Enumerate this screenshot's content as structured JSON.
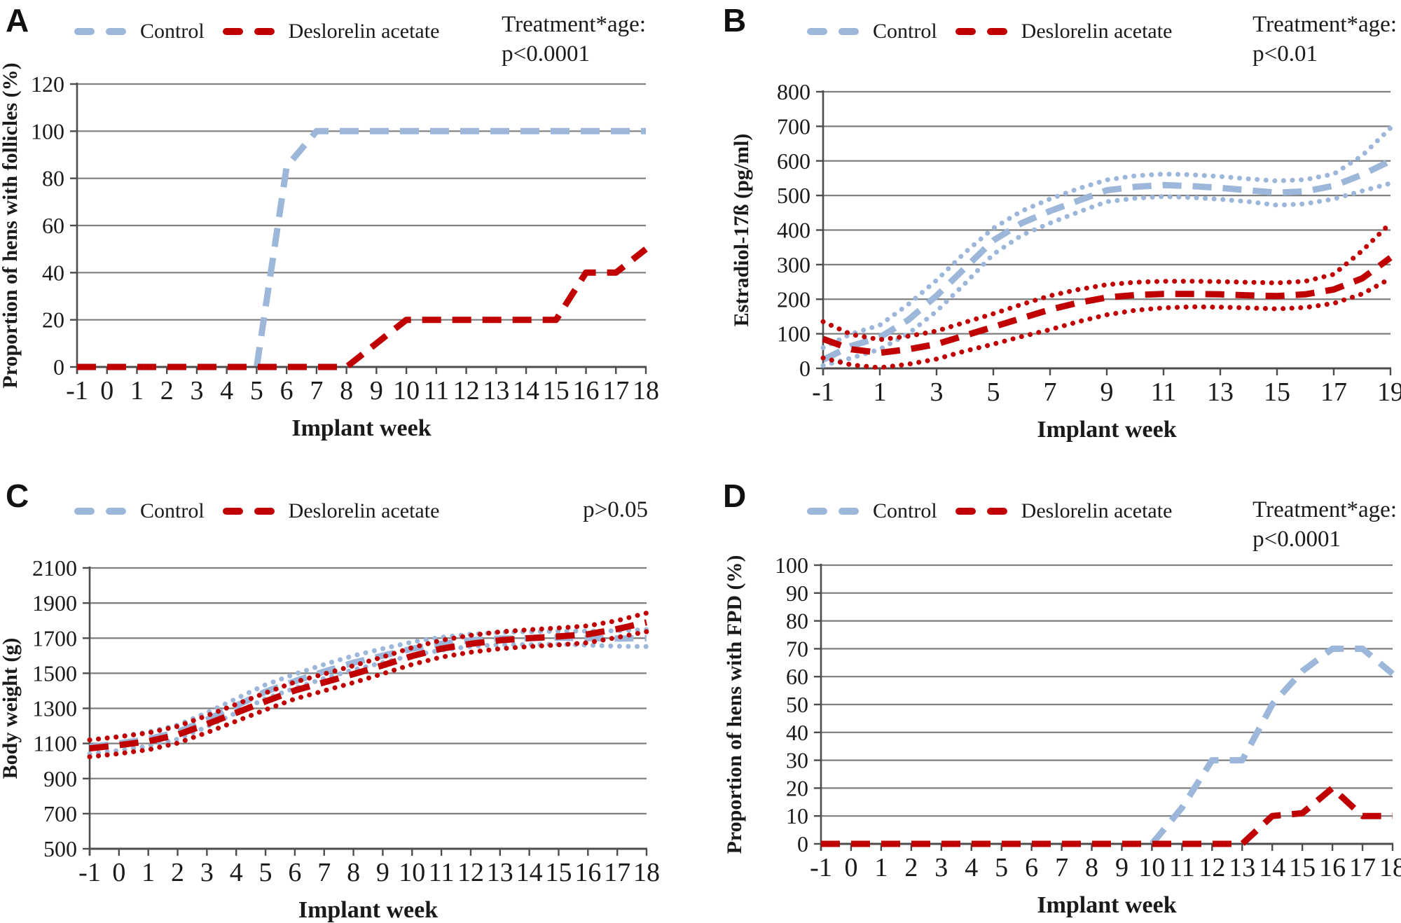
{
  "figure_title": "Four-panel line figure comparing Control and Deslorelin acetate hens over implant weeks",
  "chart_data": [
    {
      "panel_label": "A",
      "type": "line",
      "xlabel": "Implant week",
      "ylabel": "Proportion of hens with follicles (%)",
      "annotation": [
        "Treatment*age:",
        "p<0.0001"
      ],
      "legend": [
        {
          "label": "Control",
          "color": "#9cb7d9"
        },
        {
          "label": "Deslorelin acetate",
          "color": "#c00000"
        }
      ],
      "legend_position": "top",
      "grid": true,
      "xlim": [
        -1,
        18
      ],
      "ylim": [
        0,
        120
      ],
      "xticks": [
        -1,
        0,
        1,
        2,
        3,
        4,
        5,
        6,
        7,
        8,
        9,
        10,
        11,
        12,
        13,
        14,
        15,
        16,
        17,
        18
      ],
      "yticks": [
        0,
        20,
        40,
        60,
        80,
        100,
        120
      ],
      "x": [
        -1,
        0,
        1,
        2,
        3,
        4,
        5,
        6,
        7,
        8,
        9,
        10,
        11,
        12,
        13,
        14,
        15,
        16,
        17,
        18
      ],
      "series": [
        {
          "name": "Control",
          "role": "mean",
          "style": "dash",
          "color": "#9cb7d9",
          "values": [
            0,
            0,
            0,
            0,
            0,
            0,
            0,
            85,
            100,
            100,
            100,
            100,
            100,
            100,
            100,
            100,
            100,
            100,
            100,
            100
          ]
        },
        {
          "name": "Deslorelin acetate",
          "role": "mean",
          "style": "dash",
          "color": "#c00000",
          "values": [
            0,
            0,
            0,
            0,
            0,
            0,
            0,
            0,
            0,
            0,
            10,
            20,
            20,
            20,
            20,
            20,
            20,
            40,
            40,
            50
          ]
        }
      ]
    },
    {
      "panel_label": "B",
      "type": "line",
      "xlabel": "Implant week",
      "ylabel": "Estradiol-17ß (pg/ml)",
      "annotation": [
        "Treatment*age:",
        "p<0.01"
      ],
      "legend": [
        {
          "label": "Control",
          "color": "#9cb7d9"
        },
        {
          "label": "Deslorelin acetate",
          "color": "#c00000"
        }
      ],
      "legend_position": "top",
      "grid": true,
      "xlim": [
        -1,
        19
      ],
      "ylim": [
        0,
        800
      ],
      "xticks": [
        -1,
        1,
        3,
        5,
        7,
        9,
        11,
        13,
        15,
        17,
        19
      ],
      "yticks": [
        0,
        100,
        200,
        300,
        400,
        500,
        600,
        700,
        800
      ],
      "x": [
        -1,
        0,
        1,
        2,
        3,
        4,
        5,
        6,
        7,
        8,
        9,
        10,
        11,
        12,
        13,
        14,
        15,
        16,
        17,
        18,
        19
      ],
      "series": [
        {
          "name": "Control (upper CI)",
          "role": "ci",
          "style": "dot",
          "color": "#9cb7d9",
          "values": [
            60,
            100,
            125,
            185,
            255,
            335,
            405,
            455,
            490,
            520,
            545,
            557,
            562,
            560,
            555,
            548,
            542,
            546,
            562,
            615,
            695
          ]
        },
        {
          "name": "Control (lower CI)",
          "role": "ci",
          "style": "dot",
          "color": "#9cb7d9",
          "values": [
            8,
            30,
            55,
            100,
            165,
            245,
            330,
            385,
            420,
            452,
            482,
            492,
            497,
            494,
            489,
            482,
            472,
            476,
            490,
            513,
            535
          ]
        },
        {
          "name": "Control",
          "role": "mean",
          "style": "dash",
          "color": "#9cb7d9",
          "values": [
            25,
            65,
            90,
            140,
            210,
            290,
            370,
            420,
            455,
            485,
            515,
            525,
            530,
            527,
            522,
            515,
            508,
            512,
            528,
            560,
            600
          ]
        },
        {
          "name": "Deslorelin acetate (upper CI)",
          "role": "ci",
          "style": "dot",
          "color": "#c00000",
          "values": [
            135,
            98,
            83,
            93,
            108,
            133,
            158,
            185,
            210,
            228,
            242,
            249,
            252,
            252,
            251,
            249,
            247,
            252,
            272,
            340,
            420
          ]
        },
        {
          "name": "Deslorelin acetate (lower CI)",
          "role": "ci",
          "style": "dot",
          "color": "#c00000",
          "values": [
            30,
            10,
            2,
            12,
            27,
            50,
            70,
            92,
            112,
            135,
            155,
            168,
            175,
            178,
            177,
            175,
            172,
            176,
            188,
            215,
            260
          ]
        },
        {
          "name": "Deslorelin acetate",
          "role": "mean",
          "style": "dash",
          "color": "#c00000",
          "values": [
            85,
            55,
            45,
            55,
            70,
            95,
            120,
            145,
            170,
            190,
            205,
            212,
            215,
            215,
            214,
            211,
            209,
            214,
            228,
            260,
            320
          ]
        }
      ]
    },
    {
      "panel_label": "C",
      "type": "line",
      "xlabel": "Implant week",
      "ylabel": "Body weight (g)",
      "annotation": [
        "p>0.05"
      ],
      "legend": [
        {
          "label": "Control",
          "color": "#9cb7d9"
        },
        {
          "label": "Deslorelin acetate",
          "color": "#c00000"
        }
      ],
      "legend_position": "top",
      "grid": true,
      "xlim": [
        -1,
        18
      ],
      "ylim": [
        500,
        2100
      ],
      "xticks": [
        -1,
        0,
        1,
        2,
        3,
        4,
        5,
        6,
        7,
        8,
        9,
        10,
        11,
        12,
        13,
        14,
        15,
        16,
        17,
        18
      ],
      "yticks": [
        500,
        700,
        900,
        1100,
        1300,
        1500,
        1700,
        1900,
        2100
      ],
      "x": [
        -1,
        0,
        1,
        2,
        3,
        4,
        5,
        6,
        7,
        8,
        9,
        10,
        11,
        12,
        13,
        14,
        15,
        16,
        17,
        18
      ],
      "series": [
        {
          "name": "Control (upper CI)",
          "role": "ci",
          "style": "dot",
          "color": "#9cb7d9",
          "values": [
            1120,
            1140,
            1165,
            1205,
            1275,
            1355,
            1435,
            1495,
            1550,
            1600,
            1640,
            1678,
            1705,
            1723,
            1733,
            1737,
            1740,
            1740,
            1742,
            1748
          ]
        },
        {
          "name": "Control (lower CI)",
          "role": "ci",
          "style": "dot",
          "color": "#9cb7d9",
          "values": [
            1040,
            1060,
            1085,
            1125,
            1195,
            1275,
            1355,
            1415,
            1470,
            1520,
            1560,
            1602,
            1631,
            1653,
            1663,
            1663,
            1666,
            1660,
            1654,
            1652
          ]
        },
        {
          "name": "Control",
          "role": "mean",
          "style": "dash",
          "color": "#9cb7d9",
          "values": [
            1080,
            1100,
            1125,
            1165,
            1235,
            1315,
            1395,
            1455,
            1510,
            1560,
            1600,
            1640,
            1668,
            1688,
            1698,
            1700,
            1703,
            1700,
            1698,
            1700
          ]
        },
        {
          "name": "Deslorelin acetate (upper CI)",
          "role": "ci",
          "style": "dot",
          "color": "#c00000",
          "values": [
            1120,
            1138,
            1160,
            1198,
            1258,
            1323,
            1388,
            1450,
            1496,
            1543,
            1593,
            1646,
            1688,
            1716,
            1736,
            1748,
            1758,
            1770,
            1800,
            1843
          ]
        },
        {
          "name": "Deslorelin acetate (lower CI)",
          "role": "ci",
          "style": "dot",
          "color": "#c00000",
          "values": [
            1024,
            1042,
            1064,
            1102,
            1162,
            1227,
            1292,
            1354,
            1400,
            1447,
            1497,
            1550,
            1592,
            1620,
            1640,
            1652,
            1662,
            1674,
            1704,
            1737
          ]
        },
        {
          "name": "Deslorelin acetate",
          "role": "mean",
          "style": "dash",
          "color": "#c00000",
          "values": [
            1072,
            1090,
            1112,
            1150,
            1210,
            1275,
            1340,
            1402,
            1448,
            1495,
            1545,
            1598,
            1640,
            1668,
            1688,
            1700,
            1710,
            1722,
            1752,
            1790
          ]
        }
      ]
    },
    {
      "panel_label": "D",
      "type": "line",
      "xlabel": "Implant week",
      "ylabel": "Proportion of hens with FPD (%)",
      "annotation": [
        "Treatment*age:",
        "p<0.0001"
      ],
      "legend": [
        {
          "label": "Control",
          "color": "#9cb7d9"
        },
        {
          "label": "Deslorelin acetate",
          "color": "#c00000"
        }
      ],
      "legend_position": "top",
      "grid": true,
      "xlim": [
        -1,
        18
      ],
      "ylim": [
        0,
        100
      ],
      "xticks": [
        -1,
        0,
        1,
        2,
        3,
        4,
        5,
        6,
        7,
        8,
        9,
        10,
        11,
        12,
        13,
        14,
        15,
        16,
        17,
        18
      ],
      "yticks": [
        0,
        10,
        20,
        30,
        40,
        50,
        60,
        70,
        80,
        90,
        100
      ],
      "x": [
        -1,
        0,
        1,
        2,
        3,
        4,
        5,
        6,
        7,
        8,
        9,
        10,
        11,
        12,
        13,
        14,
        15,
        16,
        17,
        18
      ],
      "series": [
        {
          "name": "Control",
          "role": "mean",
          "style": "dash",
          "color": "#9cb7d9",
          "values": [
            0,
            0,
            0,
            0,
            0,
            0,
            0,
            0,
            0,
            0,
            0,
            0,
            13,
            30,
            30,
            50,
            62,
            70,
            70,
            61
          ]
        },
        {
          "name": "Deslorelin acetate",
          "role": "mean",
          "style": "dash",
          "color": "#c00000",
          "values": [
            0,
            0,
            0,
            0,
            0,
            0,
            0,
            0,
            0,
            0,
            0,
            0,
            0,
            0,
            0,
            10,
            11,
            20,
            10,
            10
          ]
        }
      ]
    }
  ]
}
